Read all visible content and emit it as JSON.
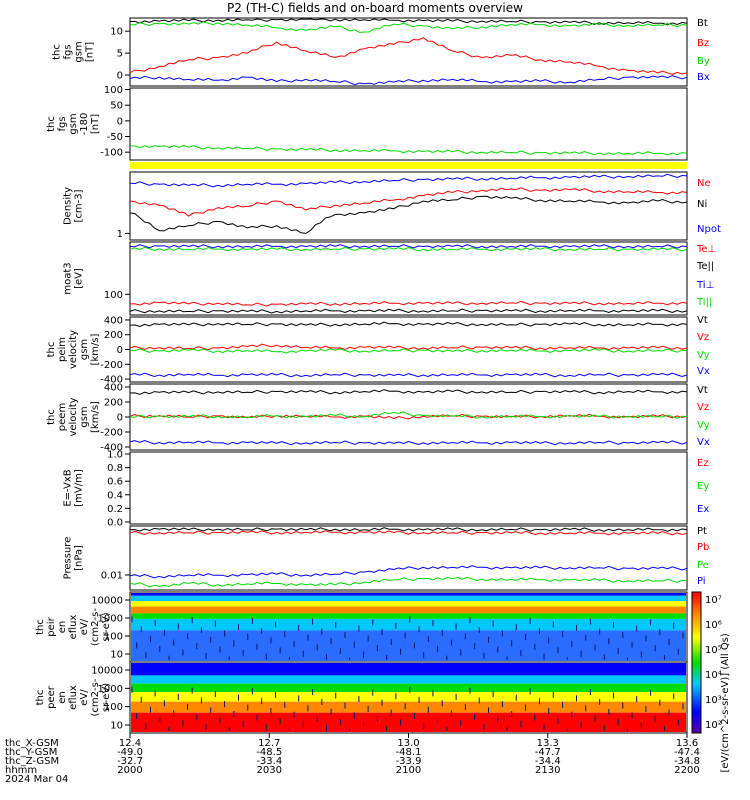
{
  "title": "P2 (TH-C) fields and on-board moments overview",
  "colors": {
    "black": "#000000",
    "red": "#ff0000",
    "green": "#00dd00",
    "blue": "#0000ff",
    "yellow": "#ffff00"
  },
  "chart_data": [
    {
      "type": "line",
      "panel": "fgs_gsm",
      "ylabel": [
        "thc",
        "fgs",
        "gsm",
        "[nT]"
      ],
      "yticks": [
        "10",
        "5",
        "0"
      ],
      "ylim": [
        -2.5,
        13
      ],
      "series": [
        {
          "name": "Bt",
          "color": "#000000",
          "values": [
            12.2,
            12.3,
            12.4,
            12.5,
            12.6,
            12.6,
            12.7,
            12.7,
            12.6,
            12.5,
            12.4,
            12.3,
            12.3,
            12.2,
            12.1,
            12.0,
            11.9,
            11.9,
            11.8,
            11.8
          ]
        },
        {
          "name": "Bz",
          "color": "#ff0000",
          "values": [
            0.5,
            2.0,
            3.5,
            4.0,
            5.0,
            7.5,
            5.5,
            4.0,
            6.0,
            7.0,
            8.5,
            5.5,
            4.0,
            4.5,
            3.5,
            3.0,
            2.0,
            1.0,
            0.5,
            0.5
          ]
        },
        {
          "name": "By",
          "color": "#00dd00",
          "values": [
            11.5,
            11.7,
            11.6,
            11.9,
            11.4,
            10.8,
            10.2,
            11.0,
            9.8,
            11.6,
            11.2,
            10.5,
            11.0,
            11.5,
            11.5,
            11.2,
            11.5,
            11.3,
            11.4,
            11.4
          ]
        },
        {
          "name": "Bx",
          "color": "#0000ff",
          "values": [
            -0.8,
            -0.5,
            -1.0,
            -1.2,
            -0.5,
            -1.5,
            -1.0,
            -1.5,
            -2.0,
            -1.6,
            -1.2,
            -1.0,
            -1.5,
            -1.5,
            -1.4,
            -1.6,
            -1.0,
            -0.5,
            -0.5,
            -0.5
          ]
        }
      ]
    },
    {
      "type": "line",
      "panel": "fgs_gsm_zoom",
      "ylabel": [
        "thc",
        "fgs",
        "gsm",
        "-180",
        "[nT]"
      ],
      "yticks": [
        "100",
        "50",
        "0",
        "-50",
        "-100"
      ],
      "ylim": [
        -125,
        105
      ],
      "series": [
        {
          "color": "#00dd00",
          "values": [
            -80,
            -82,
            -84,
            -86,
            -88,
            -90,
            -92,
            -93,
            -95,
            -96,
            -98,
            -99,
            -100,
            -101,
            -102,
            -103,
            -103,
            -104,
            -104,
            -104
          ]
        }
      ]
    },
    {
      "type": "line",
      "panel": "density",
      "ylabel": [
        "Density",
        "[cm-3]"
      ],
      "yticks": [
        "1"
      ],
      "ylim": [
        0.8,
        8
      ],
      "log": true,
      "series": [
        {
          "name": "Ne",
          "color": "#ff0000",
          "values": [
            3.0,
            2.6,
            1.8,
            2.4,
            2.5,
            3.0,
            2.2,
            2.6,
            2.8,
            3.1,
            3.6,
            4.0,
            4.3,
            4.5,
            4.3,
            4.4,
            4.2,
            4.1,
            4.0,
            4.0
          ]
        },
        {
          "name": "Ni",
          "color": "#000000",
          "values": [
            2.0,
            1.1,
            1.3,
            1.5,
            1.2,
            1.3,
            1.0,
            1.9,
            2.0,
            2.3,
            3.0,
            3.1,
            3.5,
            3.3,
            3.1,
            3.0,
            2.9,
            2.8,
            3.0,
            2.9
          ]
        },
        {
          "name": "Npot",
          "color": "#0000ff",
          "values": [
            5.5,
            5.3,
            5.1,
            5.1,
            5.3,
            5.3,
            5.4,
            5.6,
            5.8,
            6.0,
            6.2,
            6.3,
            6.4,
            6.5,
            6.6,
            6.7,
            6.8,
            6.9,
            7.0,
            7.0
          ]
        }
      ]
    },
    {
      "type": "line",
      "panel": "temperature",
      "ylabel": [
        "moat3",
        "[eV]"
      ],
      "yticks": [
        "100"
      ],
      "ylim": [
        28,
        2500
      ],
      "log": true,
      "series": [
        {
          "name": "Te⊥",
          "color": "#ff0000",
          "values": [
            55,
            60,
            55,
            58,
            52,
            54,
            55,
            56,
            57,
            58,
            58,
            57,
            58,
            59,
            58,
            57,
            58,
            57,
            58,
            58
          ]
        },
        {
          "name": "Te||",
          "color": "#000000",
          "values": [
            35,
            36,
            35,
            36,
            35,
            35,
            36,
            36,
            36,
            36,
            36,
            36,
            37,
            36,
            36,
            37,
            36,
            36,
            36,
            36
          ]
        },
        {
          "name": "Ti⊥",
          "color": "#0000ff",
          "values": [
            1900,
            1950,
            1900,
            1920,
            1900,
            1910,
            1900,
            1920,
            1940,
            1930,
            1900,
            1920,
            1910,
            1900,
            1920,
            1900,
            1910,
            1900,
            1900,
            1900
          ]
        },
        {
          "name": "Ti||",
          "color": "#00dd00",
          "values": [
            1600,
            1650,
            1600,
            1620,
            1580,
            1590,
            1600,
            1620,
            1640,
            1630,
            1600,
            1610,
            1600,
            1600,
            1610,
            1600,
            1600,
            1600,
            1600,
            1600
          ]
        }
      ]
    },
    {
      "type": "line",
      "panel": "peim_velocity",
      "ylabel": [
        "thc",
        "peim",
        "velocity",
        "gsm",
        "[km/s]"
      ],
      "yticks": [
        "400",
        "200",
        "0",
        "-200",
        "-400"
      ],
      "ylim": [
        -440,
        440
      ],
      "series": [
        {
          "name": "Vt",
          "color": "#000000",
          "values": [
            330,
            340,
            335,
            350,
            340,
            345,
            330,
            340,
            345,
            350,
            340,
            345,
            340,
            335,
            340,
            345,
            340,
            335,
            340,
            340
          ]
        },
        {
          "name": "Vz",
          "color": "#ff0000",
          "values": [
            20,
            25,
            15,
            20,
            40,
            60,
            30,
            20,
            30,
            25,
            20,
            25,
            30,
            25,
            20,
            25,
            20,
            20,
            25,
            20
          ]
        },
        {
          "name": "Vy",
          "color": "#00dd00",
          "values": [
            -10,
            -20,
            -10,
            -20,
            -15,
            -30,
            -20,
            -10,
            -20,
            -15,
            -10,
            -25,
            -15,
            -10,
            -20,
            -15,
            -10,
            -20,
            -15,
            -15
          ]
        },
        {
          "name": "Vx",
          "color": "#0000ff",
          "values": [
            -340,
            -345,
            -335,
            -350,
            -340,
            -345,
            -350,
            -340,
            -345,
            -350,
            -345,
            -340,
            -345,
            -340,
            -345,
            -350,
            -340,
            -345,
            -340,
            -345
          ]
        }
      ]
    },
    {
      "type": "line",
      "panel": "peem_velocity",
      "ylabel": [
        "thc",
        "peem",
        "velocity",
        "gsm",
        "[km/s]"
      ],
      "yticks": [
        "400",
        "200",
        "0",
        "-200",
        "-400"
      ],
      "ylim": [
        -440,
        440
      ],
      "series": [
        {
          "name": "Vt",
          "color": "#000000",
          "values": [
            320,
            330,
            325,
            335,
            330,
            340,
            335,
            330,
            340,
            345,
            330,
            340,
            335,
            330,
            340,
            335,
            330,
            340,
            335,
            335
          ]
        },
        {
          "name": "Vz",
          "color": "#ff0000",
          "values": [
            10,
            20,
            0,
            15,
            -10,
            20,
            10,
            0,
            10,
            -20,
            10,
            15,
            10,
            0,
            10,
            20,
            10,
            0,
            10,
            10
          ]
        },
        {
          "name": "Vy",
          "color": "#00dd00",
          "values": [
            0,
            10,
            5,
            10,
            0,
            15,
            5,
            20,
            10,
            60,
            20,
            10,
            5,
            10,
            5,
            10,
            5,
            10,
            5,
            5
          ]
        },
        {
          "name": "Vx",
          "color": "#0000ff",
          "values": [
            -330,
            -340,
            -335,
            -345,
            -340,
            -350,
            -345,
            -340,
            -345,
            -350,
            -345,
            -340,
            -345,
            -340,
            -350,
            -345,
            -340,
            -345,
            -340,
            -340
          ]
        }
      ]
    },
    {
      "type": "line",
      "panel": "efield",
      "ylabel": [
        "E=-VxB",
        "[mV/m]"
      ],
      "yticks": [
        "1.0",
        "0.8",
        "0.6",
        "0.4",
        "0.2",
        "0.0"
      ],
      "ylim": [
        -0.03,
        1.03
      ],
      "series": [
        {
          "name": "Ez",
          "color": "#ff0000",
          "values": []
        },
        {
          "name": "Ey",
          "color": "#00dd00",
          "values": []
        },
        {
          "name": "Ex",
          "color": "#0000ff",
          "values": []
        }
      ]
    },
    {
      "type": "line",
      "panel": "pressure",
      "ylabel": [
        "Pressure",
        "[nPa]"
      ],
      "yticks": [
        "0.01"
      ],
      "ylim": [
        0.004,
        0.2
      ],
      "log": true,
      "series": [
        {
          "name": "Pt",
          "color": "#000000",
          "values": [
            0.16,
            0.165,
            0.16,
            0.165,
            0.16,
            0.165,
            0.16,
            0.165,
            0.16,
            0.165,
            0.16,
            0.162,
            0.16,
            0.162,
            0.16,
            0.162,
            0.16,
            0.16,
            0.16,
            0.16
          ]
        },
        {
          "name": "Pb",
          "color": "#ff0000",
          "values": [
            0.13,
            0.132,
            0.133,
            0.134,
            0.135,
            0.135,
            0.136,
            0.136,
            0.135,
            0.134,
            0.133,
            0.132,
            0.132,
            0.131,
            0.13,
            0.13,
            0.129,
            0.129,
            0.128,
            0.128
          ]
        },
        {
          "name": "Pe",
          "color": "#00dd00",
          "values": [
            0.006,
            0.005,
            0.006,
            0.0055,
            0.0058,
            0.006,
            0.0055,
            0.0055,
            0.0065,
            0.0075,
            0.008,
            0.008,
            0.0078,
            0.0076,
            0.0075,
            0.0074,
            0.0072,
            0.007,
            0.007,
            0.007
          ]
        },
        {
          "name": "Pi",
          "color": "#0000ff",
          "values": [
            0.0095,
            0.0092,
            0.01,
            0.0098,
            0.0102,
            0.0105,
            0.01,
            0.0105,
            0.012,
            0.014,
            0.016,
            0.016,
            0.016,
            0.0155,
            0.0155,
            0.0155,
            0.0155,
            0.015,
            0.015,
            0.015
          ]
        }
      ]
    },
    {
      "type": "heatmap",
      "panel": "peir_eflux",
      "ylabel": [
        "thc",
        "peir",
        "en",
        "eflux",
        "eV/",
        "(cm2-s-",
        "sr-eV)"
      ],
      "yticks": [
        "10000",
        "1000",
        "100",
        "10"
      ]
    },
    {
      "type": "heatmap",
      "panel": "peer_eflux",
      "ylabel": [
        "thc",
        "peer",
        "en",
        "eflux",
        "eV/",
        "(cm2-s-",
        "sr-eV)"
      ],
      "yticks": [
        "10000",
        "1000",
        "100",
        "10"
      ]
    }
  ],
  "colorbar": {
    "label": "[eV/(cm^2-s-sr-eV)] (All Qs)",
    "ticks": [
      "10⁷",
      "10⁶",
      "10⁵",
      "10⁴",
      "10³",
      "10²"
    ]
  },
  "xaxis": {
    "rows": [
      {
        "label": "thc_X-GSM",
        "values": [
          "12.4",
          "12.7",
          "13.0",
          "13.3",
          "13.6"
        ]
      },
      {
        "label": "thc_Y-GSM",
        "values": [
          "-49.0",
          "-48.5",
          "-48.1",
          "-47.7",
          "-47.4"
        ]
      },
      {
        "label": "thc_Z-GSM",
        "values": [
          "-32.7",
          "-33.4",
          "-33.9",
          "-34.4",
          "-34.8"
        ]
      },
      {
        "label": "hhmm",
        "values": [
          "2000",
          "2030",
          "2100",
          "2130",
          "2200"
        ]
      }
    ],
    "date": "2024 Mar 04"
  }
}
